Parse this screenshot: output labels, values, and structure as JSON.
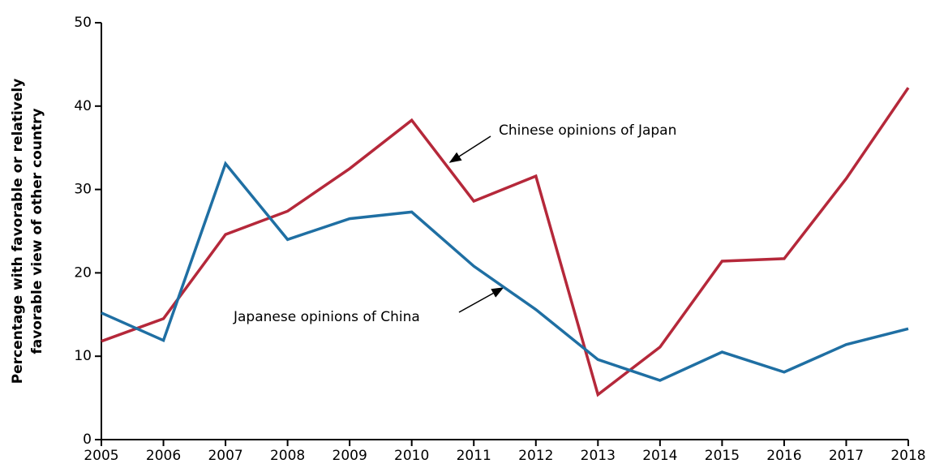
{
  "chart_data": {
    "type": "line",
    "y_label": [
      "Percentage with favorable or relatively",
      "favorable view of other country"
    ],
    "x": [
      2005,
      2006,
      2007,
      2008,
      2009,
      2010,
      2011,
      2012,
      2013,
      2014,
      2015,
      2016,
      2017,
      2018
    ],
    "series": [
      {
        "name": "Chinese opinions of Japan",
        "color": "#b5283a",
        "values": [
          11.8,
          14.5,
          24.6,
          27.4,
          32.5,
          38.3,
          28.6,
          31.6,
          5.4,
          11.1,
          21.4,
          21.7,
          31.3,
          42.2
        ]
      },
      {
        "name": "Japanese opinions of China",
        "color": "#1f6fa3",
        "values": [
          15.2,
          11.9,
          33.1,
          24.0,
          26.5,
          27.3,
          20.8,
          15.6,
          9.6,
          7.1,
          10.5,
          8.1,
          11.4,
          13.3
        ]
      }
    ],
    "xlim": [
      2005,
      2018
    ],
    "xticks": [
      2005,
      2006,
      2007,
      2008,
      2009,
      2010,
      2011,
      2012,
      2013,
      2014,
      2015,
      2016,
      2017,
      2018
    ],
    "ylim": [
      0,
      50
    ],
    "yticks": [
      0,
      10,
      20,
      30,
      40,
      50
    ],
    "grid": false
  }
}
